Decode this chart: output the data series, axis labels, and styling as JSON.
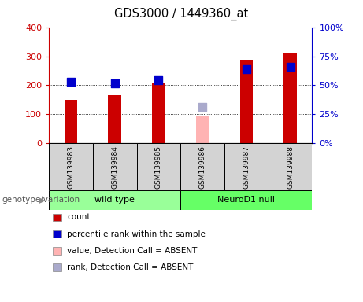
{
  "title": "GDS3000 / 1449360_at",
  "samples": [
    "GSM139983",
    "GSM139984",
    "GSM139985",
    "GSM139986",
    "GSM139987",
    "GSM139988"
  ],
  "count_values": [
    150,
    165,
    207,
    null,
    288,
    310
  ],
  "count_absent_values": [
    null,
    null,
    null,
    93,
    null,
    null
  ],
  "percentile_values": [
    53,
    52,
    54.5,
    null,
    63.8,
    65.8
  ],
  "percentile_absent_values": [
    null,
    null,
    null,
    31.3,
    null,
    null
  ],
  "bar_color": "#cc0000",
  "bar_absent_color": "#ffb3b3",
  "dot_color": "#0000cc",
  "dot_absent_color": "#aaaacc",
  "ylim_left": [
    0,
    400
  ],
  "ylim_right": [
    0,
    100
  ],
  "yticks_left": [
    0,
    100,
    200,
    300,
    400
  ],
  "yticks_right": [
    0,
    25,
    50,
    75,
    100
  ],
  "yticklabels_left": [
    "0",
    "100",
    "200",
    "300",
    "400"
  ],
  "yticklabels_right": [
    "0%",
    "25%",
    "50%",
    "75%",
    "100%"
  ],
  "grid_levels": [
    100,
    200,
    300
  ],
  "groups": [
    {
      "label": "wild type",
      "indices": [
        0,
        1,
        2
      ],
      "color": "#99ff99"
    },
    {
      "label": "NeuroD1 null",
      "indices": [
        3,
        4,
        5
      ],
      "color": "#66ff66"
    }
  ],
  "group_row_label": "genotype/variation",
  "legend": [
    {
      "label": "count",
      "color": "#cc0000"
    },
    {
      "label": "percentile rank within the sample",
      "color": "#0000cc"
    },
    {
      "label": "value, Detection Call = ABSENT",
      "color": "#ffb3b3"
    },
    {
      "label": "rank, Detection Call = ABSENT",
      "color": "#aaaacc"
    }
  ],
  "bar_width": 0.3,
  "dot_size": 55,
  "plot_bg_color": "#ffffff",
  "sample_cell_color": "#d3d3d3",
  "left_axis_color": "#cc0000",
  "right_axis_color": "#0000cc"
}
